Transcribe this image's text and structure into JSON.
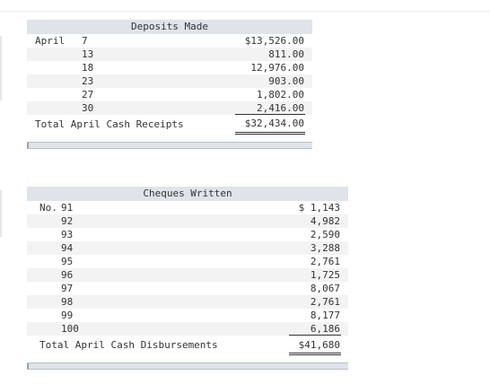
{
  "deposits": {
    "title": "Deposits Made",
    "month": "April",
    "rows": [
      {
        "day": "7",
        "amount": "$13,526.00"
      },
      {
        "day": "13",
        "amount": "811.00"
      },
      {
        "day": "18",
        "amount": "12,976.00"
      },
      {
        "day": "23",
        "amount": "903.00"
      },
      {
        "day": "27",
        "amount": "1,802.00"
      },
      {
        "day": "30",
        "amount": "2,416.00"
      }
    ],
    "total_label": "Total April Cash Receipts",
    "total": "$32,434.00"
  },
  "cheques": {
    "title": "Cheques Written",
    "prefix": "No.",
    "rows": [
      {
        "no": "91",
        "amount": "$ 1,143"
      },
      {
        "no": "92",
        "amount": "4,982"
      },
      {
        "no": "93",
        "amount": "2,590"
      },
      {
        "no": "94",
        "amount": "3,288"
      },
      {
        "no": "95",
        "amount": "2,761"
      },
      {
        "no": "96",
        "amount": "1,725"
      },
      {
        "no": "97",
        "amount": "8,067"
      },
      {
        "no": "98",
        "amount": "2,761"
      },
      {
        "no": "99",
        "amount": "8,177"
      },
      {
        "no": "100",
        "amount": "6,186"
      }
    ],
    "total_label": "Total April Cash Disbursements",
    "total": "$41,680"
  }
}
